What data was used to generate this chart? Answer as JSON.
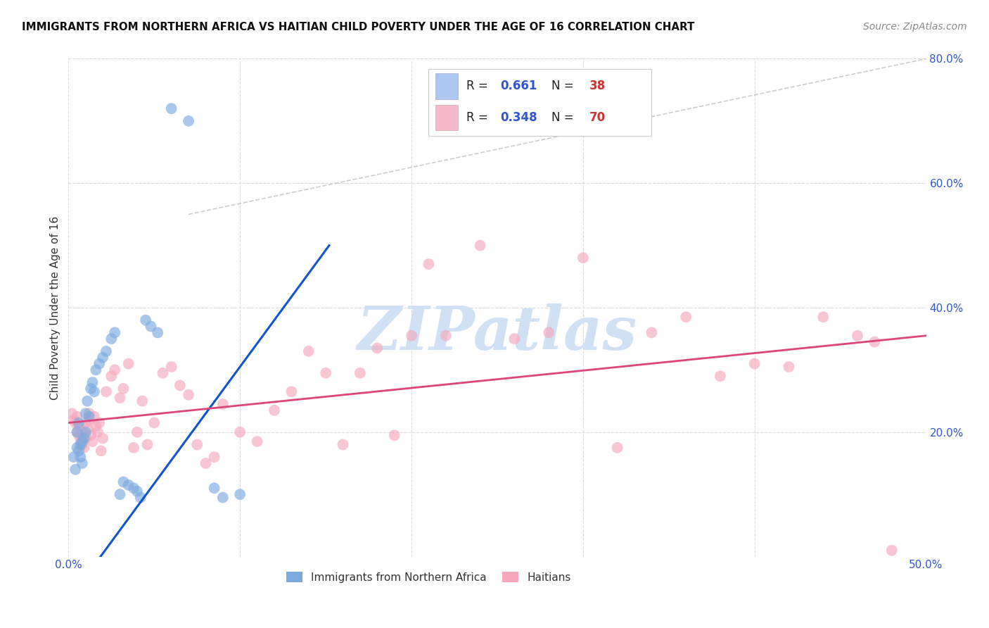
{
  "title": "IMMIGRANTS FROM NORTHERN AFRICA VS HAITIAN CHILD POVERTY UNDER THE AGE OF 16 CORRELATION CHART",
  "source": "Source: ZipAtlas.com",
  "ylabel": "Child Poverty Under the Age of 16",
  "xlim": [
    0.0,
    0.5
  ],
  "ylim": [
    0.0,
    0.8
  ],
  "xtick_positions": [
    0.0,
    0.1,
    0.2,
    0.3,
    0.4,
    0.5
  ],
  "xtick_labels": [
    "0.0%",
    "",
    "",
    "",
    "",
    "50.0%"
  ],
  "ytick_positions": [
    0.0,
    0.2,
    0.4,
    0.6,
    0.8
  ],
  "ytick_labels": [
    "",
    "20.0%",
    "40.0%",
    "60.0%",
    "80.0%"
  ],
  "legend_color1": "#adc8f0",
  "legend_color2": "#f5b8c8",
  "blue_color": "#7baae0",
  "pink_color": "#f5a8bc",
  "blue_line_color": "#1155cc",
  "pink_line_color": "#dd4477",
  "diag_color": "#bbbbbb",
  "watermark_text": "ZIPatlas",
  "watermark_color": "#d0e0f5",
  "background_color": "#ffffff",
  "grid_color": "#d8d8d8",
  "title_color": "#111111",
  "source_color": "#888888",
  "tick_label_color": "#3355cc",
  "ylabel_color": "#333333",
  "blue_label": "Immigrants from Northern Africa",
  "pink_label": "Haitians",
  "blue_r_text": "0.661",
  "blue_n_text": "38",
  "pink_r_text": "0.348",
  "pink_n_text": "70",
  "r_color": "#3355cc",
  "n_color": "#cc3333",
  "blue_x": [
    0.003,
    0.004,
    0.005,
    0.005,
    0.006,
    0.006,
    0.007,
    0.007,
    0.008,
    0.008,
    0.009,
    0.01,
    0.01,
    0.011,
    0.012,
    0.013,
    0.014,
    0.015,
    0.016,
    0.018,
    0.02,
    0.022,
    0.025,
    0.027,
    0.03,
    0.032,
    0.035,
    0.038,
    0.04,
    0.042,
    0.045,
    0.048,
    0.052,
    0.06,
    0.07,
    0.085,
    0.09,
    0.1
  ],
  "blue_y": [
    0.16,
    0.14,
    0.175,
    0.2,
    0.17,
    0.215,
    0.18,
    0.16,
    0.15,
    0.185,
    0.19,
    0.2,
    0.23,
    0.25,
    0.225,
    0.27,
    0.28,
    0.265,
    0.3,
    0.31,
    0.32,
    0.33,
    0.35,
    0.36,
    0.1,
    0.12,
    0.115,
    0.11,
    0.105,
    0.095,
    0.38,
    0.37,
    0.36,
    0.72,
    0.7,
    0.11,
    0.095,
    0.1
  ],
  "pink_x": [
    0.002,
    0.003,
    0.004,
    0.005,
    0.005,
    0.006,
    0.006,
    0.007,
    0.008,
    0.008,
    0.009,
    0.01,
    0.01,
    0.011,
    0.012,
    0.012,
    0.013,
    0.014,
    0.015,
    0.016,
    0.017,
    0.018,
    0.019,
    0.02,
    0.022,
    0.025,
    0.027,
    0.03,
    0.032,
    0.035,
    0.038,
    0.04,
    0.043,
    0.046,
    0.05,
    0.055,
    0.06,
    0.065,
    0.07,
    0.075,
    0.08,
    0.085,
    0.09,
    0.1,
    0.11,
    0.12,
    0.13,
    0.14,
    0.15,
    0.16,
    0.17,
    0.18,
    0.19,
    0.2,
    0.21,
    0.22,
    0.24,
    0.26,
    0.28,
    0.3,
    0.32,
    0.34,
    0.36,
    0.38,
    0.4,
    0.42,
    0.44,
    0.46,
    0.47,
    0.48
  ],
  "pink_y": [
    0.23,
    0.22,
    0.215,
    0.225,
    0.2,
    0.21,
    0.195,
    0.185,
    0.2,
    0.18,
    0.175,
    0.19,
    0.215,
    0.205,
    0.22,
    0.23,
    0.195,
    0.185,
    0.225,
    0.21,
    0.2,
    0.215,
    0.17,
    0.19,
    0.265,
    0.29,
    0.3,
    0.255,
    0.27,
    0.31,
    0.175,
    0.2,
    0.25,
    0.18,
    0.215,
    0.295,
    0.305,
    0.275,
    0.26,
    0.18,
    0.15,
    0.16,
    0.245,
    0.2,
    0.185,
    0.235,
    0.265,
    0.33,
    0.295,
    0.18,
    0.295,
    0.335,
    0.195,
    0.355,
    0.47,
    0.355,
    0.5,
    0.35,
    0.36,
    0.48,
    0.175,
    0.36,
    0.385,
    0.29,
    0.31,
    0.305,
    0.385,
    0.355,
    0.345,
    0.01
  ],
  "blue_line_x": [
    0.0,
    0.152
  ],
  "blue_line_y": [
    -0.07,
    0.5
  ],
  "pink_line_x": [
    0.0,
    0.5
  ],
  "pink_line_y": [
    0.215,
    0.355
  ],
  "diag_line_x": [
    0.07,
    0.5
  ],
  "diag_line_y": [
    0.55,
    0.8
  ]
}
